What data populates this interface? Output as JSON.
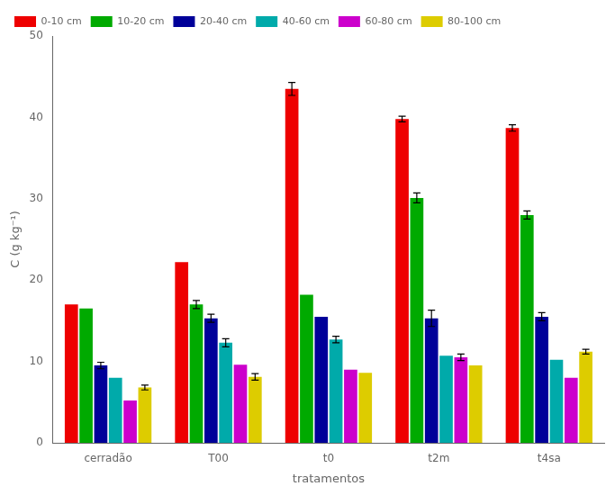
{
  "chart_data": {
    "type": "bar",
    "xlabel": "tratamentos",
    "ylabel": "C (g kg⁻¹)",
    "categories": [
      "cerradão",
      "T00",
      "t0",
      "t2m",
      "t4sa"
    ],
    "series": [
      {
        "name": "0-10 cm",
        "color": "#ee0000",
        "values": [
          17.0,
          22.2,
          43.5,
          39.8,
          38.7
        ],
        "errors": [
          0.0,
          0.0,
          0.8,
          0.35,
          0.4
        ]
      },
      {
        "name": "10-20 cm",
        "color": "#00aa00",
        "values": [
          16.5,
          17.0,
          18.2,
          30.1,
          28.0
        ],
        "errors": [
          0.0,
          0.5,
          0.0,
          0.6,
          0.5
        ]
      },
      {
        "name": "20-40 cm",
        "color": "#000099",
        "values": [
          9.5,
          15.3,
          15.5,
          15.3,
          15.5
        ],
        "errors": [
          0.4,
          0.5,
          0.0,
          1.0,
          0.5
        ]
      },
      {
        "name": "40-60 cm",
        "color": "#00aaaa",
        "values": [
          8.0,
          12.3,
          12.7,
          10.7,
          10.2
        ],
        "errors": [
          0.0,
          0.5,
          0.4,
          0.0,
          0.0
        ]
      },
      {
        "name": "60-80 cm",
        "color": "#cc00cc",
        "values": [
          5.2,
          9.6,
          9.0,
          10.5,
          8.0
        ],
        "errors": [
          0.0,
          0.0,
          0.0,
          0.4,
          0.0
        ]
      },
      {
        "name": "80-100 cm",
        "color": "#ddcc00",
        "values": [
          6.8,
          8.1,
          8.6,
          9.5,
          11.2
        ],
        "errors": [
          0.3,
          0.4,
          0.0,
          0.0,
          0.3
        ]
      }
    ],
    "ylim": [
      0,
      50
    ],
    "yticks": [
      0,
      10,
      20,
      30,
      40,
      50
    ],
    "grid": false,
    "legend": "upper left"
  }
}
